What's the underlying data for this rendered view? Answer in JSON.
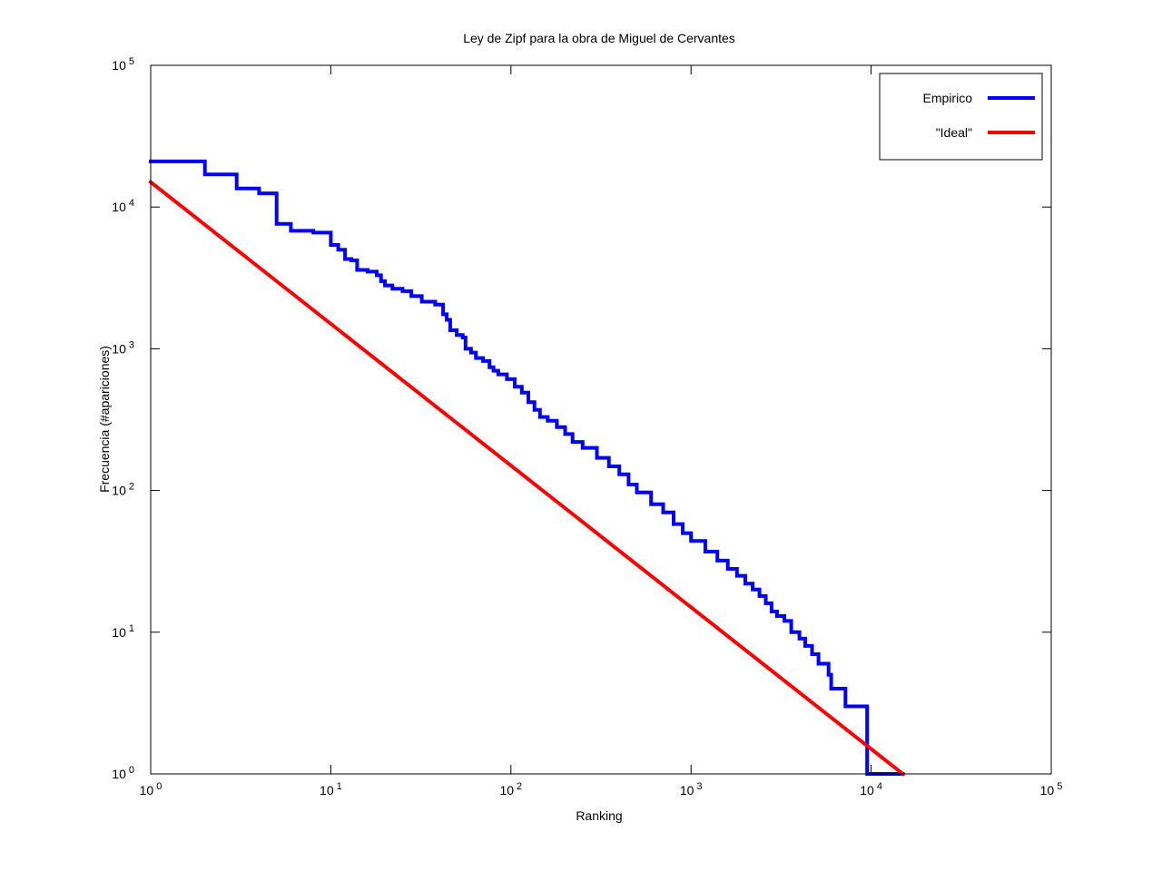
{
  "chart_data": {
    "type": "line",
    "title": "Ley de Zipf para la obra de Miguel de Cervantes",
    "xlabel": "Ranking",
    "ylabel": "Frecuencia (#apariciones)",
    "xscale": "log",
    "yscale": "log",
    "xlim": [
      1,
      100000
    ],
    "ylim": [
      1,
      100000
    ],
    "x_ticks": [
      {
        "base": "10",
        "exp": "0",
        "value": 1
      },
      {
        "base": "10",
        "exp": "1",
        "value": 10
      },
      {
        "base": "10",
        "exp": "2",
        "value": 100
      },
      {
        "base": "10",
        "exp": "3",
        "value": 1000
      },
      {
        "base": "10",
        "exp": "4",
        "value": 10000
      },
      {
        "base": "10",
        "exp": "5",
        "value": 100000
      }
    ],
    "y_ticks": [
      {
        "base": "10",
        "exp": "0",
        "value": 1
      },
      {
        "base": "10",
        "exp": "1",
        "value": 10
      },
      {
        "base": "10",
        "exp": "2",
        "value": 100
      },
      {
        "base": "10",
        "exp": "3",
        "value": 1000
      },
      {
        "base": "10",
        "exp": "4",
        "value": 10000
      },
      {
        "base": "10",
        "exp": "5",
        "value": 100000
      }
    ],
    "grid": false,
    "legend_position": "top-right",
    "series": [
      {
        "name": "Empirico",
        "color": "#0000ff",
        "style": "steps",
        "points": [
          [
            1,
            21000
          ],
          [
            2,
            17000
          ],
          [
            3,
            13500
          ],
          [
            4,
            12500
          ],
          [
            5,
            7600
          ],
          [
            6,
            6800
          ],
          [
            8,
            6600
          ],
          [
            10,
            5400
          ],
          [
            11,
            5000
          ],
          [
            12,
            4300
          ],
          [
            13,
            4200
          ],
          [
            14,
            3600
          ],
          [
            16,
            3500
          ],
          [
            18,
            3300
          ],
          [
            19,
            3000
          ],
          [
            20,
            2800
          ],
          [
            22,
            2650
          ],
          [
            25,
            2550
          ],
          [
            28,
            2350
          ],
          [
            32,
            2150
          ],
          [
            38,
            2050
          ],
          [
            42,
            1750
          ],
          [
            44,
            1600
          ],
          [
            46,
            1350
          ],
          [
            50,
            1250
          ],
          [
            54,
            1200
          ],
          [
            56,
            1000
          ],
          [
            60,
            940
          ],
          [
            64,
            860
          ],
          [
            70,
            820
          ],
          [
            76,
            740
          ],
          [
            80,
            700
          ],
          [
            85,
            660
          ],
          [
            95,
            610
          ],
          [
            105,
            540
          ],
          [
            115,
            490
          ],
          [
            125,
            420
          ],
          [
            135,
            370
          ],
          [
            145,
            330
          ],
          [
            160,
            310
          ],
          [
            180,
            280
          ],
          [
            200,
            250
          ],
          [
            220,
            220
          ],
          [
            250,
            200
          ],
          [
            300,
            170
          ],
          [
            350,
            148
          ],
          [
            400,
            130
          ],
          [
            450,
            110
          ],
          [
            500,
            97
          ],
          [
            600,
            80
          ],
          [
            700,
            70
          ],
          [
            800,
            58
          ],
          [
            900,
            50
          ],
          [
            1000,
            44
          ],
          [
            1200,
            37
          ],
          [
            1400,
            32
          ],
          [
            1600,
            28
          ],
          [
            1800,
            25
          ],
          [
            2000,
            22
          ],
          [
            2200,
            20
          ],
          [
            2400,
            18
          ],
          [
            2600,
            16
          ],
          [
            2800,
            14
          ],
          [
            3000,
            13
          ],
          [
            3300,
            12
          ],
          [
            3600,
            10
          ],
          [
            4000,
            9
          ],
          [
            4300,
            8
          ],
          [
            4700,
            7
          ],
          [
            5100,
            6
          ],
          [
            5800,
            5
          ],
          [
            6000,
            4
          ],
          [
            7200,
            3
          ],
          [
            9500,
            2
          ],
          [
            9500,
            1
          ],
          [
            15000,
            1
          ]
        ]
      },
      {
        "name": "\"Ideal\"",
        "color": "#ff0000",
        "style": "line",
        "points": [
          [
            1,
            15000
          ],
          [
            15000,
            1
          ]
        ]
      }
    ]
  }
}
